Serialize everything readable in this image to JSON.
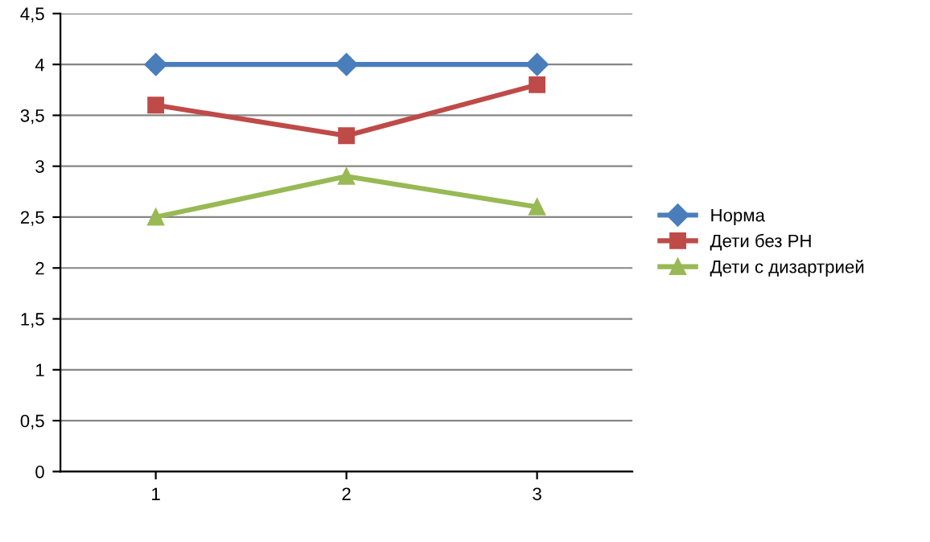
{
  "chart_data": {
    "type": "line",
    "categories": [
      "1",
      "2",
      "3"
    ],
    "series": [
      {
        "name": "Норма",
        "color": "#4a7ebb",
        "marker": "diamond",
        "values": [
          4,
          4,
          4
        ]
      },
      {
        "name": "Дети без РН",
        "color": "#be4b48",
        "marker": "square",
        "values": [
          3.6,
          3.3,
          3.8
        ]
      },
      {
        "name": "Дети с дизартрией",
        "color": "#98b954",
        "marker": "triangle",
        "values": [
          2.5,
          2.9,
          2.6
        ]
      }
    ],
    "ylim": [
      0,
      4.5
    ],
    "yticks": [
      {
        "value": 0,
        "label": "0"
      },
      {
        "value": 0.5,
        "label": "0,5"
      },
      {
        "value": 1,
        "label": "1"
      },
      {
        "value": 1.5,
        "label": "1,5"
      },
      {
        "value": 2,
        "label": "2"
      },
      {
        "value": 2.5,
        "label": "2,5"
      },
      {
        "value": 3,
        "label": "3"
      },
      {
        "value": 3.5,
        "label": "3,5"
      },
      {
        "value": 4,
        "label": "4"
      },
      {
        "value": 4.5,
        "label": "4,5"
      }
    ],
    "grid": "y",
    "legend": "right",
    "line_style": "solid"
  }
}
